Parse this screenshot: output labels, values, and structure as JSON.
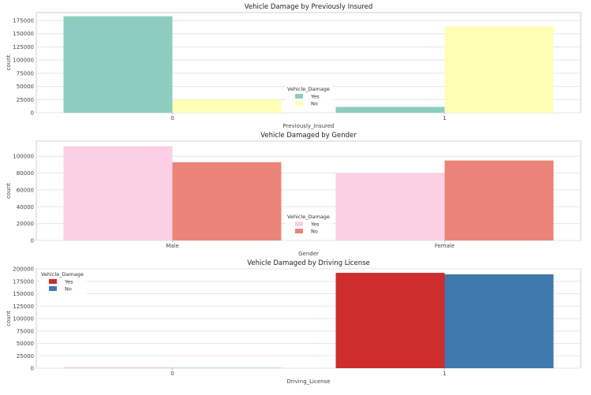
{
  "chart_data": [
    {
      "type": "bar",
      "title": "Vehicle Damage by Previously Insured",
      "xlabel": "Previously_Insured",
      "ylabel": "count",
      "categories": [
        "0",
        "1"
      ],
      "series": [
        {
          "name": "Yes",
          "values": [
            183000,
            11000
          ],
          "color": "#8dcdbf"
        },
        {
          "name": "No",
          "values": [
            25000,
            164000
          ],
          "color": "#ffffb3"
        }
      ],
      "ylim": [
        0,
        190000
      ],
      "yticks": [
        0,
        25000,
        50000,
        75000,
        100000,
        125000,
        150000,
        175000
      ],
      "legend": {
        "title": "Vehicle_Damage",
        "placement": "center"
      },
      "grid": true
    },
    {
      "type": "bar",
      "title": "Vehicle Damaged by Gender",
      "xlabel": "Gender",
      "ylabel": "count",
      "categories": [
        "Male",
        "Female"
      ],
      "series": [
        {
          "name": "Yes",
          "values": [
            112000,
            80000
          ],
          "color": "#fbcfe4"
        },
        {
          "name": "No",
          "values": [
            93000,
            95000
          ],
          "color": "#ea8478"
        }
      ],
      "ylim": [
        0,
        118000
      ],
      "yticks": [
        0,
        20000,
        40000,
        60000,
        80000,
        100000
      ],
      "legend": {
        "title": "Vehicle_Damage",
        "placement": "center"
      },
      "grid": true
    },
    {
      "type": "bar",
      "title": "Vehicle Damaged by Driving License",
      "xlabel": "Driving_License",
      "ylabel": "count",
      "categories": [
        "0",
        "1"
      ],
      "series": [
        {
          "name": "Yes",
          "values": [
            400,
            192000
          ],
          "color": "#cd2d2d"
        },
        {
          "name": "No",
          "values": [
            400,
            189000
          ],
          "color": "#3f79ad"
        }
      ],
      "ylim": [
        0,
        200000
      ],
      "yticks": [
        0,
        25000,
        50000,
        75000,
        100000,
        125000,
        150000,
        175000,
        200000
      ],
      "legend": {
        "title": "Vehicle_Damage",
        "placement": "upper left"
      },
      "grid": true
    }
  ]
}
